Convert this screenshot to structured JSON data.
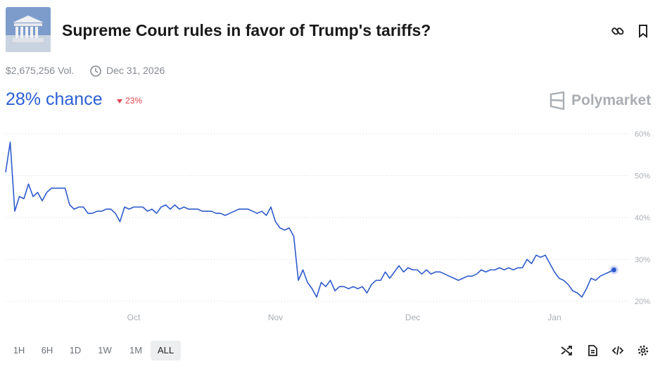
{
  "header": {
    "title": "Supreme Court rules in favor of Trump's tariffs?",
    "volume": "$2,675,256 Vol.",
    "end_date": "Dec 31, 2026",
    "chance": "28% chance",
    "change": "23%",
    "brand": "Polymarket"
  },
  "time_ranges": [
    "1H",
    "6H",
    "1D",
    "1W",
    "1M",
    "ALL"
  ],
  "chart_data": {
    "type": "line",
    "categories": [
      null,
      null,
      null,
      null,
      null,
      null,
      null,
      null,
      null,
      null,
      null,
      null,
      null,
      null,
      null,
      null,
      null,
      null,
      null,
      null,
      null,
      null,
      null,
      null,
      null,
      null,
      null,
      null,
      "Oct",
      null,
      null,
      null,
      null,
      null,
      null,
      null,
      null,
      null,
      null,
      null,
      null,
      null,
      null,
      null,
      null,
      null,
      null,
      null,
      null,
      null,
      null,
      null,
      null,
      null,
      null,
      null,
      null,
      null,
      null,
      "Nov",
      null,
      null,
      null,
      null,
      null,
      null,
      null,
      null,
      null,
      null,
      null,
      null,
      null,
      null,
      null,
      null,
      null,
      null,
      null,
      null,
      null,
      null,
      null,
      null,
      null,
      null,
      null,
      null,
      null,
      "Dec",
      null,
      null,
      null,
      null,
      null,
      null,
      null,
      null,
      null,
      null,
      null,
      null,
      null,
      null,
      null,
      null,
      null,
      null,
      null,
      null,
      null,
      null,
      null,
      null,
      null,
      null,
      null,
      null,
      null,
      null,
      "Jan",
      null,
      null,
      null,
      null,
      null,
      null,
      null,
      null,
      null,
      null,
      null,
      null,
      null
    ],
    "series": [
      {
        "color": "#2e5bcc",
        "values": [
          50.8,
          58,
          41.5,
          45,
          44.5,
          48,
          45,
          46,
          44,
          46,
          47,
          47,
          47,
          47,
          43,
          42,
          42.5,
          42.5,
          41,
          41,
          41.5,
          41.5,
          42,
          42,
          41,
          39,
          42.5,
          42,
          42.5,
          42.5,
          42.5,
          41.5,
          42,
          41,
          42.5,
          43,
          42,
          43,
          42,
          42.5,
          42,
          42,
          42,
          41.5,
          41.5,
          41.5,
          41,
          41,
          40.5,
          41,
          41.5,
          42,
          42,
          42,
          41.5,
          41,
          41.5,
          40.5,
          42.5,
          39,
          37.5,
          37,
          37.5,
          35.5,
          25,
          27.5,
          24.5,
          23,
          21,
          24.5,
          23.5,
          25,
          22.5,
          23.5,
          23.5,
          23,
          23.5,
          23,
          23.5,
          22,
          24,
          25,
          25,
          27,
          25.5,
          27,
          28.5,
          27,
          28,
          27.5,
          27.5,
          26.5,
          27.5,
          26.5,
          27,
          27,
          26.5,
          26,
          25.5,
          25,
          25.5,
          26,
          26,
          26.5,
          27.5,
          27,
          27.5,
          27.5,
          28,
          27.5,
          28,
          27.5,
          28,
          28,
          30,
          29,
          31,
          30.5,
          31,
          29,
          27,
          25.5,
          25,
          24,
          22.5,
          22,
          21,
          23,
          25.5,
          25,
          26,
          26.5,
          27,
          27.5
        ]
      }
    ],
    "ylim": [
      20,
      60
    ],
    "yticks": [
      {
        "value": 20,
        "label": "20%"
      },
      {
        "value": 30,
        "label": "30%"
      },
      {
        "value": 40,
        "label": "40%"
      },
      {
        "value": 50,
        "label": "50%"
      },
      {
        "value": 60,
        "label": "60%"
      }
    ],
    "grid": true
  }
}
